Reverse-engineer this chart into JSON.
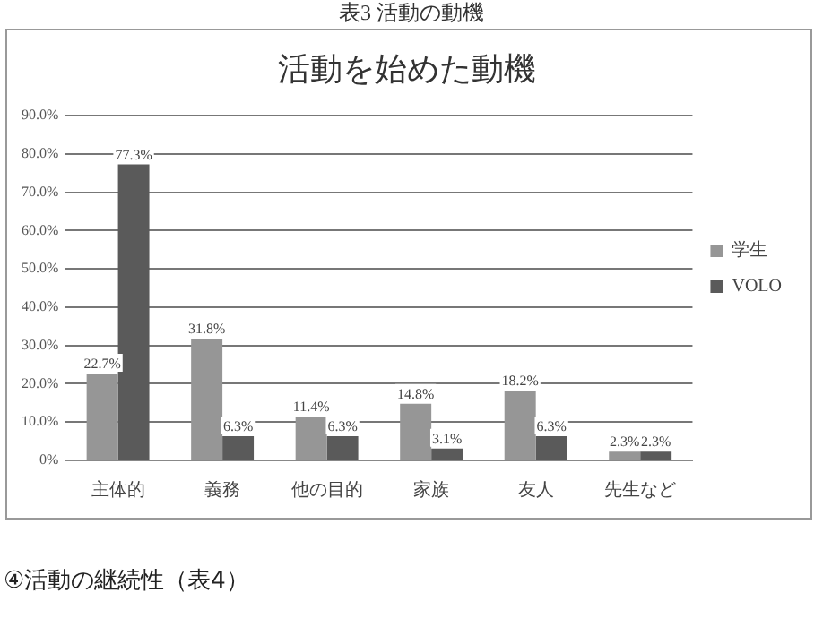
{
  "chart_data": {
    "type": "bar",
    "title": "活動を始めた動機",
    "annotations": [
      "表3 活動の動機",
      "④活動の継続性（表4）"
    ],
    "categories": [
      "主体的",
      "義務",
      "他の目的",
      "家族",
      "友人",
      "先生など"
    ],
    "series": [
      {
        "name": "学生",
        "color": "#969696",
        "values": [
          22.7,
          31.8,
          11.4,
          14.8,
          18.2,
          2.3
        ],
        "value_labels": [
          "22.7%",
          "31.8%",
          "11.4%",
          "14.8%",
          "18.2%",
          "2.3%"
        ]
      },
      {
        "name": "VOLO",
        "color": "#5a5a5a",
        "values": [
          77.3,
          6.3,
          6.3,
          3.1,
          6.3,
          2.3
        ],
        "value_labels": [
          "77.3%",
          "6.3%",
          "6.3%",
          "3.1%",
          "6.3%",
          "2.3%"
        ]
      }
    ],
    "ylim": [
      0,
      90
    ],
    "yticks": [
      {
        "value": 0,
        "label": "0%"
      },
      {
        "value": 10,
        "label": "10.0%"
      },
      {
        "value": 20,
        "label": "20.0%"
      },
      {
        "value": 30,
        "label": "30.0%"
      },
      {
        "value": 40,
        "label": "40.0%"
      },
      {
        "value": 50,
        "label": "50.0%"
      },
      {
        "value": 60,
        "label": "60.0%"
      },
      {
        "value": 70,
        "label": "70.0%"
      },
      {
        "value": 80,
        "label": "80.0%"
      },
      {
        "value": 90,
        "label": "90.0%"
      }
    ],
    "grid": "y",
    "legend": "right"
  }
}
